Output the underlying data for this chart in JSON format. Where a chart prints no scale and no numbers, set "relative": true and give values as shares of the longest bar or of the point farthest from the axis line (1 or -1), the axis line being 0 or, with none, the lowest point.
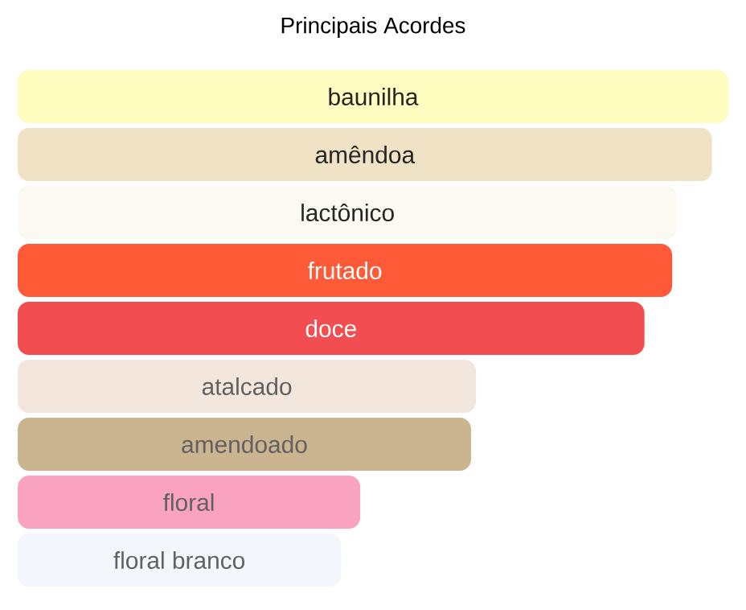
{
  "chart_data": {
    "type": "bar",
    "orientation": "horizontal",
    "relative": true,
    "title": "Principais Acordes",
    "categories": [
      "baunilha",
      "amêndoa",
      "lactônico",
      "frutado",
      "doce",
      "atalcado",
      "amendoado",
      "floral",
      "floral branco"
    ],
    "values": [
      1,
      0.977,
      0.928,
      0.921,
      0.882,
      0.645,
      0.638,
      0.482,
      0.455
    ],
    "colors": [
      "#fffdc0",
      "#f0e2c4",
      "#fbf9f2",
      "#ff5a38",
      "#f24e52",
      "#f3e6dc",
      "#cbb590",
      "#f9a3c0",
      "#f3f6fb"
    ]
  }
}
